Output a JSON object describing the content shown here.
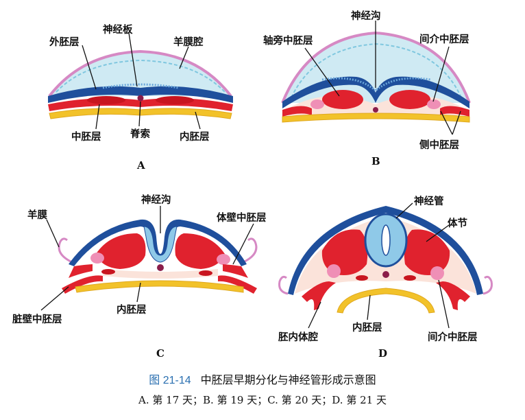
{
  "panels": {
    "A": {
      "tag": "A",
      "labels": {
        "outer_germ": "外胚层",
        "neural_plate": "神经板",
        "amniotic_cavity": "羊膜腔",
        "mesoderm": "中胚层",
        "notochord": "脊索",
        "endoderm": "内胚层"
      }
    },
    "B": {
      "tag": "B",
      "labels": {
        "neural_groove": "神经沟",
        "paraxial": "轴旁中胚层",
        "intermediate": "间介中胚层",
        "lateral": "侧中胚层"
      }
    },
    "C": {
      "tag": "C",
      "labels": {
        "amnion": "羊膜",
        "neural_groove": "神经沟",
        "parietal": "体壁中胚层",
        "visceral": "脏壁中胚层",
        "endoderm": "内胚层"
      }
    },
    "D": {
      "tag": "D",
      "labels": {
        "neural_tube": "神经管",
        "somite": "体节",
        "coelom": "胚内体腔",
        "endoderm": "内胚层",
        "intermediate": "间介中胚层"
      }
    }
  },
  "caption": {
    "number": "图 21-14",
    "title": "中胚层早期分化与神经管形成示意图",
    "subtitle": "A. 第 17 天；B. 第 19 天；C. 第 20 天；D. 第 21 天"
  },
  "colors": {
    "ectoderm": "#1f4f9c",
    "mesoderm": "#e0222e",
    "endoderm": "#f2c22a",
    "amnion": "#d689c4",
    "amniotic_fluid": "#cfeaf3",
    "mesenchyme": "#fbe3da",
    "notochord": "#8a1d4a",
    "caption_accent": "#2a6fb0"
  }
}
